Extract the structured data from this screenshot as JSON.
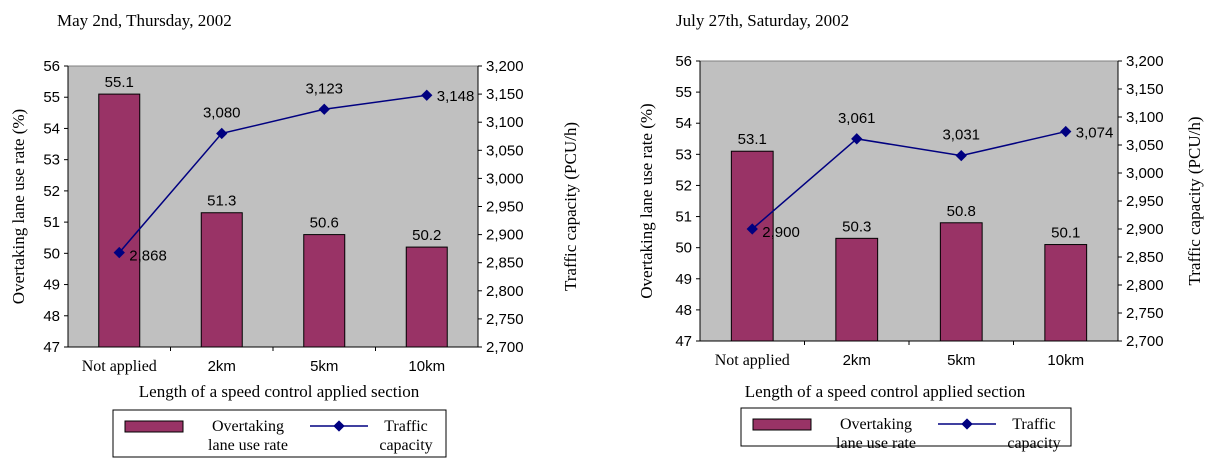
{
  "chart_data": [
    {
      "type": "bar",
      "title": "May 2nd, Thursday, 2002",
      "xlabel": "Length of a speed control applied section",
      "ylabel": "Overtaking lane use rate (%)",
      "y2label": "Traffic capacity (PCU/h)",
      "categories": [
        "Not applied",
        "2km",
        "5km",
        "10km"
      ],
      "ylim": [
        47,
        56
      ],
      "y_ticks": [
        "47",
        "48",
        "49",
        "50",
        "51",
        "52",
        "53",
        "54",
        "55",
        "56"
      ],
      "y2lim": [
        2700,
        3200
      ],
      "y2_ticks": [
        "2,700",
        "2,750",
        "2,800",
        "2,850",
        "2,900",
        "2,950",
        "3,000",
        "3,050",
        "3,100",
        "3,150",
        "3,200"
      ],
      "series": [
        {
          "name": "Overtaking lane use rate",
          "kind": "bar",
          "axis": "left",
          "values": [
            55.1,
            51.3,
            50.6,
            50.2
          ],
          "labels": [
            "55.1",
            "51.3",
            "50.6",
            "50.2"
          ]
        },
        {
          "name": "Traffic capacity",
          "kind": "line",
          "axis": "right",
          "values": [
            2868,
            3080,
            3123,
            3148
          ],
          "labels": [
            "2,868",
            "3,080",
            "3,123",
            "3,148"
          ]
        }
      ],
      "legend": {
        "position": "bottom",
        "entries": [
          {
            "line1": "Overtaking",
            "line2": "lane use rate"
          },
          {
            "line1": "Traffic",
            "line2": "capacity"
          }
        ]
      },
      "grid": false,
      "colors": {
        "bar": "#993366",
        "bar_edge": "#000000",
        "line": "#000080",
        "plot_bg": "#c0c0c0"
      }
    },
    {
      "type": "bar",
      "title": "July 27th, Saturday, 2002",
      "xlabel": "Length of a speed control applied section",
      "ylabel": "Overtaking lane use rate (%)",
      "y2label": "Traffic capacity (PCU/h)",
      "categories": [
        "Not applied",
        "2km",
        "5km",
        "10km"
      ],
      "ylim": [
        47,
        56
      ],
      "y_ticks": [
        "47",
        "48",
        "49",
        "50",
        "51",
        "52",
        "53",
        "54",
        "55",
        "56"
      ],
      "y2lim": [
        2700,
        3200
      ],
      "y2_ticks": [
        "2,700",
        "2,750",
        "2,800",
        "2,850",
        "2,900",
        "2,950",
        "3,000",
        "3,050",
        "3,100",
        "3,150",
        "3,200"
      ],
      "series": [
        {
          "name": "Overtaking lane use rate",
          "kind": "bar",
          "axis": "left",
          "values": [
            53.1,
            50.3,
            50.8,
            50.1
          ],
          "labels": [
            "53.1",
            "50.3",
            "50.8",
            "50.1"
          ]
        },
        {
          "name": "Traffic capacity",
          "kind": "line",
          "axis": "right",
          "values": [
            2900,
            3061,
            3031,
            3074
          ],
          "labels": [
            "2,900",
            "3,061",
            "3,031",
            "3,074"
          ]
        }
      ],
      "legend": {
        "position": "bottom",
        "entries": [
          {
            "line1": "Overtaking",
            "line2": "lane use rate"
          },
          {
            "line1": "Traffic",
            "line2": "capacity"
          }
        ]
      },
      "grid": false,
      "colors": {
        "bar": "#993366",
        "bar_edge": "#000000",
        "line": "#000080",
        "plot_bg": "#c0c0c0"
      }
    }
  ]
}
